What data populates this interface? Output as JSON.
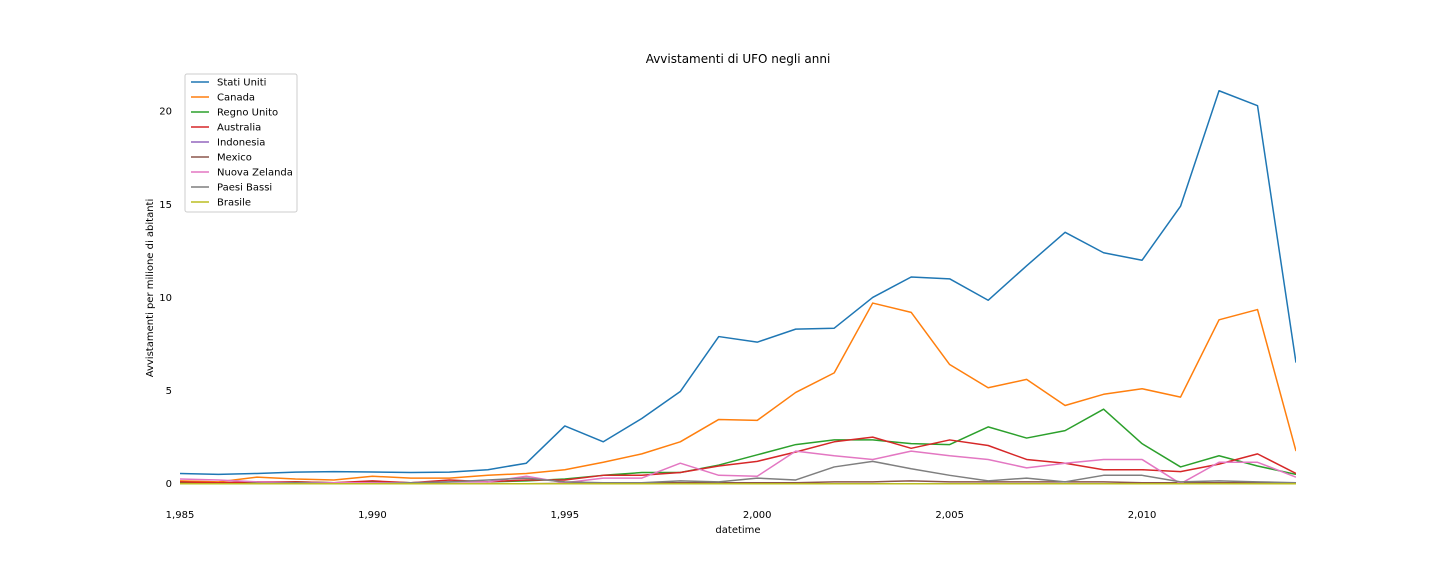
{
  "chart_data": {
    "type": "line",
    "title": "Avvistamenti di UFO negli anni",
    "xlabel": "datetime",
    "ylabel": "Avvistamenti per milione di abitanti",
    "xlim": [
      1985,
      2014
    ],
    "ylim": [
      -0.5,
      22
    ],
    "xticks": [
      1985,
      1990,
      1995,
      2000,
      2005,
      2010
    ],
    "xtick_labels": [
      "1,985",
      "1,990",
      "1,995",
      "2,000",
      "2,005",
      "2,010"
    ],
    "yticks": [
      0,
      5,
      10,
      15,
      20
    ],
    "ytick_labels": [
      "0",
      "5",
      "10",
      "15",
      "20"
    ],
    "grid": false,
    "legend_position": "top-left",
    "x": [
      1985,
      1986,
      1987,
      1988,
      1989,
      1990,
      1991,
      1992,
      1993,
      1994,
      1995,
      1996,
      1997,
      1998,
      1999,
      2000,
      2001,
      2002,
      2003,
      2004,
      2005,
      2006,
      2007,
      2008,
      2009,
      2010,
      2011,
      2012,
      2013,
      2014
    ],
    "series": [
      {
        "name": "Stati Uniti",
        "color": "#1f77b4",
        "values": [
          0.55,
          0.5,
          0.55,
          0.62,
          0.65,
          0.63,
          0.6,
          0.62,
          0.75,
          1.1,
          3.1,
          2.25,
          3.5,
          4.95,
          7.9,
          7.6,
          8.3,
          8.35,
          10.0,
          11.1,
          11.0,
          9.85,
          11.7,
          13.5,
          12.4,
          12.0,
          14.9,
          21.1,
          20.3,
          6.5
        ]
      },
      {
        "name": "Canada",
        "color": "#ff7f0e",
        "values": [
          0.15,
          0.1,
          0.35,
          0.25,
          0.2,
          0.4,
          0.3,
          0.3,
          0.45,
          0.55,
          0.75,
          1.15,
          1.6,
          2.25,
          3.45,
          3.4,
          4.9,
          5.95,
          9.7,
          9.2,
          6.4,
          5.15,
          5.6,
          4.2,
          4.8,
          5.1,
          4.65,
          8.8,
          9.35,
          1.75
        ]
      },
      {
        "name": "Regno Unito",
        "color": "#2ca02c",
        "values": [
          0.05,
          0.05,
          0.05,
          0.1,
          0.05,
          0.1,
          0.05,
          0.1,
          0.1,
          0.15,
          0.25,
          0.45,
          0.6,
          0.6,
          1.0,
          1.55,
          2.1,
          2.35,
          2.35,
          2.15,
          2.1,
          3.05,
          2.45,
          2.85,
          4.0,
          2.15,
          0.9,
          1.5,
          0.95,
          0.5
        ]
      },
      {
        "name": "Australia",
        "color": "#d62728",
        "values": [
          0.1,
          0.05,
          0.1,
          0.1,
          0.05,
          0.15,
          0.05,
          0.2,
          0.1,
          0.2,
          0.2,
          0.45,
          0.45,
          0.6,
          0.95,
          1.2,
          1.7,
          2.25,
          2.5,
          1.9,
          2.35,
          2.05,
          1.3,
          1.1,
          0.75,
          0.75,
          0.65,
          1.05,
          1.6,
          0.55
        ]
      },
      {
        "name": "Indonesia",
        "color": "#9467bd",
        "values": [
          0,
          0,
          0,
          0,
          0,
          0,
          0,
          0,
          0,
          0,
          0,
          0,
          0,
          0,
          0,
          0,
          0,
          0,
          0,
          0,
          0,
          0,
          0,
          0,
          0,
          0,
          0,
          0,
          0,
          0
        ]
      },
      {
        "name": "Mexico",
        "color": "#8c564b",
        "values": [
          0,
          0,
          0,
          0,
          0,
          0.02,
          0,
          0,
          0,
          0,
          0.02,
          0.03,
          0.05,
          0.05,
          0.05,
          0.05,
          0.05,
          0.1,
          0.1,
          0.15,
          0.1,
          0.1,
          0.1,
          0.1,
          0.1,
          0.05,
          0.05,
          0.05,
          0.05,
          0.05
        ]
      },
      {
        "name": "Nuova Zelanda",
        "color": "#e377c2",
        "values": [
          0.25,
          0.2,
          0.1,
          0.05,
          0.05,
          0.05,
          0.05,
          0.1,
          0.1,
          0.4,
          0.05,
          0.3,
          0.3,
          1.1,
          0.45,
          0.4,
          1.75,
          1.5,
          1.3,
          1.75,
          1.5,
          1.3,
          0.85,
          1.1,
          1.3,
          1.3,
          0.0,
          1.15,
          1.15,
          0.35
        ]
      },
      {
        "name": "Paesi Bassi",
        "color": "#7f7f7f",
        "values": [
          0,
          0,
          0,
          0.05,
          0,
          0,
          0.05,
          0.1,
          0.2,
          0.3,
          0.1,
          0.05,
          0.05,
          0.15,
          0.1,
          0.3,
          0.2,
          0.9,
          1.2,
          0.8,
          0.45,
          0.15,
          0.3,
          0.1,
          0.45,
          0.45,
          0.1,
          0.15,
          0.1,
          0.05
        ]
      },
      {
        "name": "Brasile",
        "color": "#bcbd22",
        "values": [
          0,
          0,
          0,
          0,
          0,
          0,
          0,
          0,
          0,
          0,
          0,
          0,
          0,
          0,
          0,
          0,
          0,
          0,
          0,
          0,
          0,
          0,
          0,
          0,
          0,
          0,
          0,
          0,
          0,
          0
        ]
      }
    ]
  }
}
